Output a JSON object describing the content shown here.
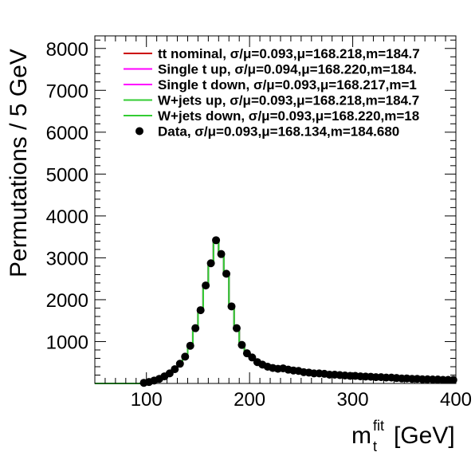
{
  "chart_data": {
    "type": "line",
    "xlabel": "m_t^fit [GeV]",
    "xlabel_main": "m",
    "xlabel_sub": "t",
    "xlabel_sup": "fit",
    "xlabel_unit": "[GeV]",
    "ylabel": "Permutations / 5 GeV",
    "xlim": [
      50,
      400
    ],
    "ylim": [
      0,
      8300
    ],
    "xticks": [
      100,
      200,
      300,
      400
    ],
    "xtick_labels": [
      "100",
      "200",
      "300",
      "400"
    ],
    "yticks": [
      1000,
      2000,
      3000,
      4000,
      5000,
      6000,
      7000,
      8000
    ],
    "ytick_labels": [
      "1000",
      "2000",
      "3000",
      "4000",
      "5000",
      "6000",
      "7000",
      "8000"
    ],
    "legend_position": "top-right",
    "x": [
      52.5,
      57.5,
      62.5,
      67.5,
      72.5,
      77.5,
      82.5,
      87.5,
      92.5,
      97.5,
      102.5,
      107.5,
      112.5,
      117.5,
      122.5,
      127.5,
      132.5,
      137.5,
      142.5,
      147.5,
      152.5,
      157.5,
      162.5,
      167.5,
      172.5,
      177.5,
      182.5,
      187.5,
      192.5,
      197.5,
      202.5,
      207.5,
      212.5,
      217.5,
      222.5,
      227.5,
      232.5,
      237.5,
      242.5,
      247.5,
      252.5,
      257.5,
      262.5,
      267.5,
      272.5,
      277.5,
      282.5,
      287.5,
      292.5,
      297.5,
      302.5,
      307.5,
      312.5,
      317.5,
      322.5,
      327.5,
      332.5,
      337.5,
      342.5,
      347.5,
      352.5,
      357.5,
      362.5,
      367.5,
      372.5,
      377.5,
      382.5,
      387.5,
      392.5,
      397.5
    ],
    "series": [
      {
        "name": "tt nominal, σ/μ=0.093,μ=168.218,m=184.7",
        "color": "#cc0000",
        "style": "step",
        "values": [
          0,
          0,
          0,
          0,
          0,
          0,
          0,
          0,
          0,
          20,
          40,
          70,
          110,
          160,
          230,
          330,
          460,
          650,
          900,
          1310,
          1740,
          2330,
          2880,
          3410,
          3110,
          2610,
          1840,
          1320,
          930,
          720,
          600,
          520,
          460,
          430,
          380,
          370,
          360,
          340,
          320,
          300,
          280,
          260,
          250,
          240,
          230,
          210,
          210,
          200,
          190,
          180,
          180,
          170,
          165,
          160,
          155,
          150,
          145,
          140,
          130,
          125,
          120,
          115,
          110,
          105,
          100,
          95,
          95,
          90,
          85,
          85
        ]
      },
      {
        "name": "Single t up, σ/μ=0.094,μ=168.220,m=184.",
        "color": "#ff00ff",
        "style": "step",
        "values": [
          0,
          0,
          0,
          0,
          0,
          0,
          0,
          0,
          0,
          20,
          40,
          70,
          110,
          160,
          230,
          330,
          460,
          650,
          900,
          1310,
          1740,
          2330,
          2880,
          3410,
          3110,
          2610,
          1840,
          1320,
          930,
          720,
          600,
          520,
          460,
          430,
          380,
          370,
          360,
          340,
          320,
          300,
          280,
          260,
          250,
          240,
          230,
          210,
          210,
          200,
          190,
          180,
          180,
          170,
          165,
          160,
          155,
          150,
          145,
          140,
          130,
          125,
          120,
          115,
          110,
          105,
          100,
          95,
          95,
          90,
          85,
          85
        ]
      },
      {
        "name": "Single t down, σ/μ=0.093,μ=168.217,m=1",
        "color": "#ff00ff",
        "style": "step",
        "values": [
          0,
          0,
          0,
          0,
          0,
          0,
          0,
          0,
          0,
          20,
          40,
          70,
          110,
          160,
          230,
          330,
          460,
          650,
          900,
          1310,
          1740,
          2330,
          2880,
          3410,
          3110,
          2610,
          1840,
          1320,
          930,
          720,
          600,
          520,
          460,
          430,
          380,
          370,
          360,
          340,
          320,
          300,
          280,
          260,
          250,
          240,
          230,
          210,
          210,
          200,
          190,
          180,
          180,
          170,
          165,
          160,
          155,
          150,
          145,
          140,
          130,
          125,
          120,
          115,
          110,
          105,
          100,
          95,
          95,
          90,
          85,
          85
        ]
      },
      {
        "name": "W+jets up, σ/μ=0.093,μ=168.218,m=184.7",
        "color": "#33cc33",
        "style": "step",
        "values": [
          0,
          0,
          0,
          0,
          0,
          0,
          0,
          0,
          0,
          20,
          40,
          70,
          110,
          160,
          230,
          330,
          460,
          650,
          900,
          1310,
          1740,
          2330,
          2880,
          3410,
          3110,
          2610,
          1840,
          1320,
          930,
          720,
          600,
          520,
          460,
          430,
          380,
          370,
          360,
          340,
          320,
          300,
          280,
          260,
          250,
          240,
          230,
          210,
          210,
          200,
          190,
          180,
          180,
          170,
          165,
          160,
          155,
          150,
          145,
          140,
          130,
          125,
          120,
          115,
          110,
          105,
          100,
          95,
          95,
          90,
          85,
          85
        ]
      },
      {
        "name": "W+jets down, σ/μ=0.093,μ=168.220,m=18",
        "color": "#33cc33",
        "style": "step",
        "values": [
          0,
          0,
          0,
          0,
          0,
          0,
          0,
          0,
          0,
          20,
          40,
          70,
          110,
          160,
          230,
          330,
          460,
          650,
          900,
          1310,
          1740,
          2330,
          2880,
          3410,
          3110,
          2610,
          1840,
          1320,
          930,
          720,
          600,
          520,
          460,
          430,
          380,
          370,
          360,
          340,
          320,
          300,
          280,
          260,
          250,
          240,
          230,
          210,
          210,
          200,
          190,
          180,
          180,
          170,
          165,
          160,
          155,
          150,
          145,
          140,
          130,
          125,
          120,
          115,
          110,
          105,
          100,
          95,
          95,
          90,
          85,
          85
        ]
      },
      {
        "name": "Data, σ/μ=0.093,μ=168.134,m=184.680",
        "color": "#000000",
        "style": "points",
        "values": [
          0,
          0,
          0,
          0,
          0,
          0,
          0,
          0,
          0,
          15,
          35,
          70,
          110,
          170,
          240,
          340,
          470,
          640,
          900,
          1320,
          1750,
          2340,
          2870,
          3420,
          3090,
          2620,
          1840,
          1320,
          920,
          720,
          620,
          510,
          450,
          400,
          370,
          350,
          360,
          330,
          310,
          300,
          270,
          260,
          240,
          240,
          230,
          210,
          210,
          200,
          190,
          180,
          180,
          170,
          165,
          160,
          150,
          150,
          140,
          140,
          130,
          120,
          120,
          110,
          110,
          100,
          100,
          95,
          95,
          85,
          85,
          85
        ]
      }
    ]
  }
}
